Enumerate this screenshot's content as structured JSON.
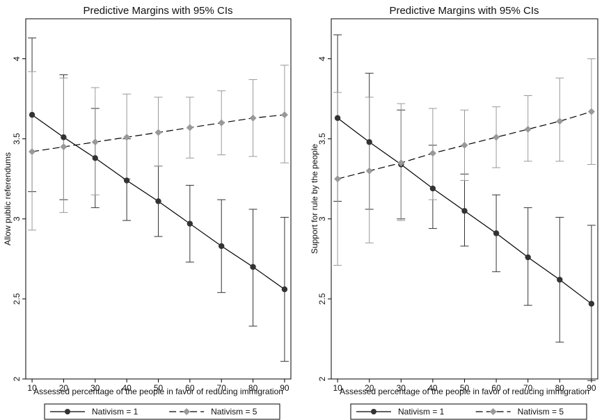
{
  "chart_data": [
    {
      "type": "line",
      "title": "Predictive Margins with 95% CIs",
      "xlabel": "Assessed percentage of the people in favor of reducing immigration",
      "ylabel": "Allow public referendums",
      "x": [
        10,
        20,
        30,
        40,
        50,
        60,
        70,
        80,
        90
      ],
      "xticks": [
        "10",
        "20",
        "30",
        "40",
        "50",
        "60",
        "70",
        "80",
        "90"
      ],
      "yticks": [
        "2",
        "2.5",
        "3",
        "3.5",
        "4"
      ],
      "ylim": [
        2.0,
        4.25
      ],
      "xlim": [
        8,
        92
      ],
      "grid": false,
      "legend_position": "bottom",
      "series": [
        {
          "name": "Nativism = 1",
          "style": "solid",
          "marker": "circle",
          "color": "#333333",
          "values": [
            3.65,
            3.51,
            3.38,
            3.24,
            3.11,
            2.97,
            2.83,
            2.7,
            2.56
          ],
          "ci_low": [
            3.17,
            3.12,
            3.07,
            2.99,
            2.89,
            2.73,
            2.54,
            2.33,
            2.11
          ],
          "ci_high": [
            4.13,
            3.9,
            3.69,
            3.5,
            3.33,
            3.21,
            3.12,
            3.06,
            3.01
          ]
        },
        {
          "name": "Nativism = 5",
          "style": "dashed",
          "marker": "diamond",
          "color": "#999999",
          "values": [
            3.42,
            3.45,
            3.48,
            3.51,
            3.54,
            3.57,
            3.6,
            3.63,
            3.65
          ],
          "ci_low": [
            2.93,
            3.04,
            3.15,
            3.25,
            3.33,
            3.38,
            3.4,
            3.39,
            3.35
          ],
          "ci_high": [
            3.92,
            3.88,
            3.82,
            3.78,
            3.76,
            3.76,
            3.8,
            3.87,
            3.96
          ]
        }
      ]
    },
    {
      "type": "line",
      "title": "Predictive Margins with 95% CIs",
      "xlabel": "Assessed percentage of the people in favor of reducing immigration",
      "ylabel": "Support for rule by the people",
      "x": [
        10,
        20,
        30,
        40,
        50,
        60,
        70,
        80,
        90
      ],
      "xticks": [
        "10",
        "20",
        "30",
        "40",
        "50",
        "60",
        "70",
        "80",
        "90"
      ],
      "yticks": [
        "2",
        "2.5",
        "3",
        "3.5",
        "4"
      ],
      "ylim": [
        2.0,
        4.25
      ],
      "xlim": [
        8,
        92
      ],
      "grid": false,
      "legend_position": "bottom",
      "series": [
        {
          "name": "Nativism = 1",
          "style": "solid",
          "marker": "circle",
          "color": "#333333",
          "values": [
            3.63,
            3.48,
            3.34,
            3.19,
            3.05,
            2.91,
            2.76,
            2.62,
            2.47
          ],
          "ci_low": [
            3.11,
            3.06,
            3.0,
            2.94,
            2.83,
            2.67,
            2.46,
            2.23,
            1.99
          ],
          "ci_high": [
            4.15,
            3.91,
            3.68,
            3.46,
            3.28,
            3.15,
            3.07,
            3.01,
            2.96
          ]
        },
        {
          "name": "Nativism = 5",
          "style": "dashed",
          "marker": "diamond",
          "color": "#999999",
          "values": [
            3.25,
            3.3,
            3.35,
            3.41,
            3.46,
            3.51,
            3.56,
            3.61,
            3.67
          ],
          "ci_low": [
            2.71,
            2.85,
            2.99,
            3.12,
            3.24,
            3.32,
            3.36,
            3.36,
            3.34
          ],
          "ci_high": [
            3.79,
            3.76,
            3.72,
            3.69,
            3.68,
            3.7,
            3.77,
            3.88,
            4.0
          ]
        }
      ]
    }
  ]
}
